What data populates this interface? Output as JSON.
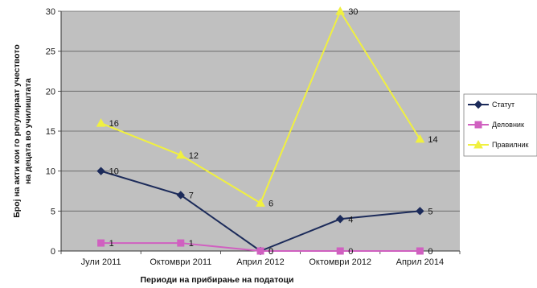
{
  "chart_data": {
    "type": "line",
    "title": "",
    "xlabel": "Периоди на прибирање на податоци",
    "ylabel_lines": [
      "Број на акти кои го регулираат учеството",
      "на децата во училиштата"
    ],
    "categories": [
      "Јули 2011",
      "Октомври 2011",
      "Април 2012",
      "Октомври 2012",
      "Април 2014"
    ],
    "ylim": [
      0,
      30
    ],
    "yticks": [
      0,
      5,
      10,
      15,
      20,
      25,
      30
    ],
    "grid": true,
    "legend_position": "right",
    "series": [
      {
        "name": "Статут",
        "values": [
          10,
          7,
          0,
          4,
          5
        ],
        "color": "#1c2b5a",
        "marker": "diamond"
      },
      {
        "name": "Деловник",
        "values": [
          1,
          1,
          0,
          0,
          0
        ],
        "color": "#d060c0",
        "marker": "square"
      },
      {
        "name": "Правилник",
        "values": [
          16,
          12,
          6,
          30,
          14
        ],
        "color": "#f0f040",
        "marker": "triangle"
      }
    ]
  }
}
